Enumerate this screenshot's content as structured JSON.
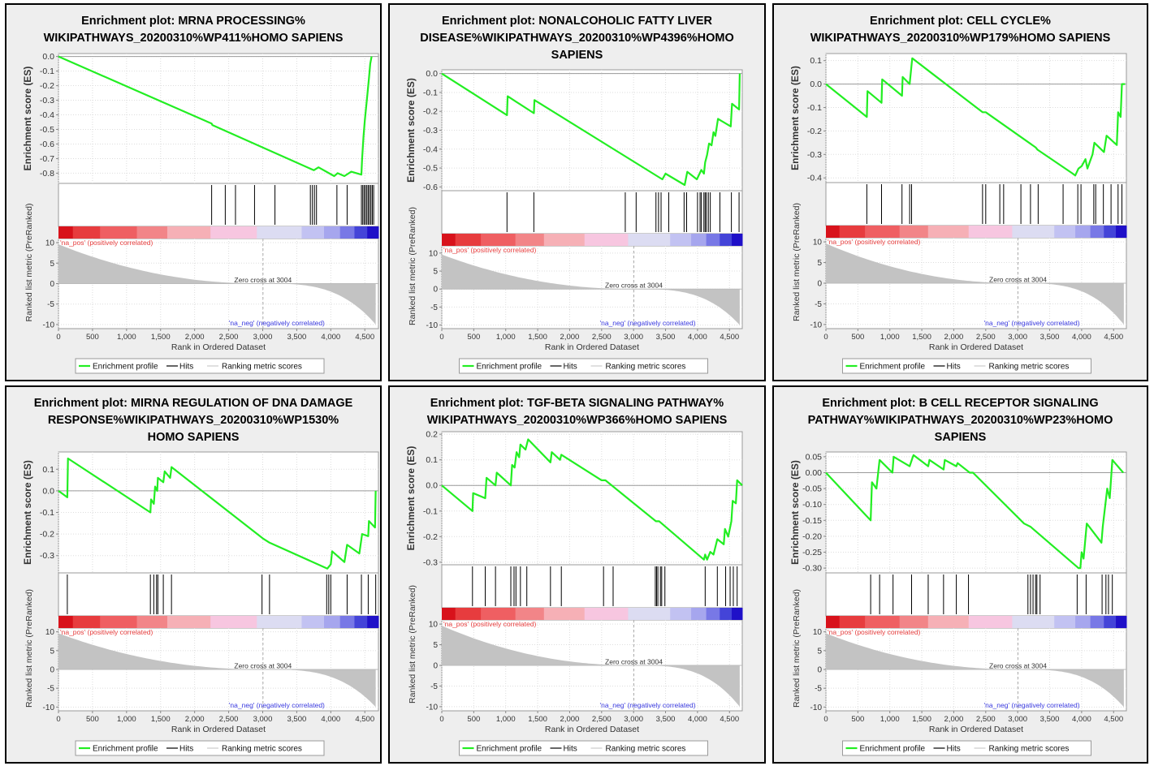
{
  "legend": {
    "profile": "Enrichment profile",
    "hits": "Hits",
    "scores": "Ranking metric scores"
  },
  "axis": {
    "xlabel": "Rank in Ordered Dataset",
    "es_label": "Enrichment score (ES)",
    "metric_label": "Ranked list metric (PreRanked)",
    "pos_label": "'na_pos' (positively correlated)",
    "neg_label": "'na_neg' (negatively correlated)",
    "zero_cross": "Zero cross at 3004"
  },
  "colors": {
    "profile": "#22ee22",
    "pos_text": "#e84040",
    "neg_text": "#3a3ae0",
    "metric_fill": "#c3c3c3",
    "colorbar": [
      "#d8121b",
      "#e73c3e",
      "#ef5f62",
      "#f28588",
      "#f6b0b6",
      "#f7c6e0",
      "#dcdcf2",
      "#c2c2f2",
      "#a6a6ee",
      "#7878e6",
      "#4444d8",
      "#1f10c8"
    ]
  },
  "chart_data": [
    {
      "type": "line",
      "title": "Enrichment plot: MRNA PROCESSING%\nWIKIPATHWAYS_20200310%WP411%HOMO SAPIENS",
      "xlim": [
        0,
        4700
      ],
      "x_ticks": [
        0,
        500,
        1000,
        1500,
        2000,
        2500,
        3000,
        3500,
        4000,
        4500
      ],
      "es_ylim": [
        -0.87,
        0.02
      ],
      "es_ticks": [
        0.0,
        -0.1,
        -0.2,
        -0.3,
        -0.4,
        -0.5,
        -0.6,
        -0.7,
        -0.8
      ],
      "es_tick_labels": [
        "0.0",
        "-0.1",
        "-0.2",
        "-0.3",
        "-0.4",
        "-0.5",
        "-0.6",
        "-0.7",
        "-0.8"
      ],
      "metric_ylim": [
        -11,
        11
      ],
      "metric_ticks": [
        10,
        5,
        0,
        -5,
        -10
      ],
      "zero_cross": 3004,
      "es_curve": [
        [
          0,
          0
        ],
        [
          2250,
          -0.46
        ],
        [
          2260,
          -0.47
        ],
        [
          3750,
          -0.78
        ],
        [
          3820,
          -0.76
        ],
        [
          4050,
          -0.82
        ],
        [
          4100,
          -0.8
        ],
        [
          4200,
          -0.82
        ],
        [
          4300,
          -0.79
        ],
        [
          4450,
          -0.81
        ],
        [
          4460,
          -0.7
        ],
        [
          4480,
          -0.55
        ],
        [
          4500,
          -0.44
        ],
        [
          4530,
          -0.3
        ],
        [
          4560,
          -0.15
        ],
        [
          4580,
          -0.05
        ],
        [
          4600,
          0.0
        ]
      ],
      "hits": [
        2250,
        2450,
        2600,
        2880,
        3180,
        3700,
        3730,
        3760,
        3790,
        4090,
        4240,
        4450,
        4470,
        4490,
        4510,
        4530,
        4550,
        4570,
        4590,
        4610,
        4630
      ]
    },
    {
      "type": "line",
      "title": "Enrichment plot: NONALCOHOLIC FATTY LIVER\nDISEASE%WIKIPATHWAYS_20200310%WP4396%HOMO\nSAPIENS",
      "xlim": [
        0,
        4700
      ],
      "x_ticks": [
        0,
        500,
        1000,
        1500,
        2000,
        2500,
        3000,
        3500,
        4000,
        4500
      ],
      "es_ylim": [
        -0.62,
        0.02
      ],
      "es_ticks": [
        0.0,
        -0.1,
        -0.2,
        -0.3,
        -0.4,
        -0.5,
        -0.6
      ],
      "es_tick_labels": [
        "0.0",
        "-0.1",
        "-0.2",
        "-0.3",
        "-0.4",
        "-0.5",
        "-0.6"
      ],
      "metric_ylim": [
        -11,
        12
      ],
      "metric_ticks": [
        10,
        5,
        0,
        -5,
        -10
      ],
      "zero_cross": 3004,
      "es_curve": [
        [
          0,
          0
        ],
        [
          1020,
          -0.22
        ],
        [
          1030,
          -0.12
        ],
        [
          1440,
          -0.21
        ],
        [
          1450,
          -0.14
        ],
        [
          3450,
          -0.56
        ],
        [
          3500,
          -0.53
        ],
        [
          3800,
          -0.59
        ],
        [
          3840,
          -0.52
        ],
        [
          3990,
          -0.56
        ],
        [
          4060,
          -0.51
        ],
        [
          4100,
          -0.53
        ],
        [
          4120,
          -0.47
        ],
        [
          4150,
          -0.43
        ],
        [
          4180,
          -0.37
        ],
        [
          4220,
          -0.38
        ],
        [
          4250,
          -0.31
        ],
        [
          4280,
          -0.33
        ],
        [
          4320,
          -0.24
        ],
        [
          4520,
          -0.28
        ],
        [
          4540,
          -0.16
        ],
        [
          4650,
          -0.19
        ],
        [
          4660,
          0.0
        ]
      ],
      "hits": [
        1020,
        1440,
        2870,
        3040,
        3350,
        3390,
        3430,
        3550,
        3790,
        3830,
        4000,
        4040,
        4060,
        4100,
        4120,
        4140,
        4170,
        4200,
        4350,
        4530,
        4650
      ]
    },
    {
      "type": "line",
      "title": "Enrichment plot: CELL CYCLE%\nWIKIPATHWAYS_20200310%WP179%HOMO SAPIENS",
      "xlim": [
        0,
        4700
      ],
      "x_ticks": [
        0,
        500,
        1000,
        1500,
        2000,
        2500,
        3000,
        3500,
        4000,
        4500
      ],
      "es_ylim": [
        -0.42,
        0.13
      ],
      "es_ticks": [
        0.1,
        0.0,
        -0.1,
        -0.2,
        -0.3,
        -0.4
      ],
      "es_tick_labels": [
        "0.1",
        "0.0",
        "-0.1",
        "-0.2",
        "-0.3",
        "-0.4"
      ],
      "metric_ylim": [
        -11,
        11
      ],
      "metric_ticks": [
        10,
        5,
        0,
        -5,
        -10
      ],
      "zero_cross": 3004,
      "es_curve": [
        [
          0,
          0
        ],
        [
          640,
          -0.14
        ],
        [
          650,
          -0.03
        ],
        [
          870,
          -0.08
        ],
        [
          880,
          0.02
        ],
        [
          1190,
          -0.05
        ],
        [
          1200,
          0.03
        ],
        [
          1310,
          0.0
        ],
        [
          1350,
          0.11
        ],
        [
          2450,
          -0.12
        ],
        [
          2500,
          -0.12
        ],
        [
          3280,
          -0.27
        ],
        [
          3310,
          -0.28
        ],
        [
          3850,
          -0.38
        ],
        [
          3900,
          -0.39
        ],
        [
          3950,
          -0.36
        ],
        [
          4000,
          -0.35
        ],
        [
          4060,
          -0.32
        ],
        [
          4090,
          -0.36
        ],
        [
          4170,
          -0.3
        ],
        [
          4200,
          -0.25
        ],
        [
          4350,
          -0.29
        ],
        [
          4390,
          -0.22
        ],
        [
          4550,
          -0.26
        ],
        [
          4570,
          -0.12
        ],
        [
          4610,
          -0.14
        ],
        [
          4630,
          0.0
        ],
        [
          4680,
          0.0
        ]
      ],
      "hits": [
        640,
        870,
        1190,
        1310,
        1340,
        2450,
        2500,
        2720,
        2780,
        3050,
        3200,
        3320,
        3710,
        3940,
        3990,
        4190,
        4220,
        4340,
        4460,
        4570,
        4630
      ]
    },
    {
      "type": "line",
      "title": "Enrichment plot: MIRNA REGULATION OF DNA DAMAGE\nRESPONSE%WIKIPATHWAYS_20200310%WP1530%\nHOMO SAPIENS",
      "xlim": [
        0,
        4700
      ],
      "x_ticks": [
        0,
        500,
        1000,
        1500,
        2000,
        2500,
        3000,
        3500,
        4000,
        4500
      ],
      "es_ylim": [
        -0.38,
        0.18
      ],
      "es_ticks": [
        0.1,
        0.0,
        -0.1,
        -0.2,
        -0.3
      ],
      "es_tick_labels": [
        "0.1",
        "0.0",
        "-0.1",
        "-0.2",
        "-0.3"
      ],
      "metric_ylim": [
        -11,
        11
      ],
      "metric_ticks": [
        10,
        5,
        0,
        -5,
        -10
      ],
      "zero_cross": 3004,
      "es_curve": [
        [
          0,
          0
        ],
        [
          130,
          -0.03
        ],
        [
          140,
          0.15
        ],
        [
          1350,
          -0.1
        ],
        [
          1360,
          -0.04
        ],
        [
          1400,
          -0.06
        ],
        [
          1420,
          0.02
        ],
        [
          1450,
          0.0
        ],
        [
          1460,
          0.06
        ],
        [
          1540,
          0.04
        ],
        [
          1560,
          0.09
        ],
        [
          1640,
          0.06
        ],
        [
          1660,
          0.11
        ],
        [
          3000,
          -0.22
        ],
        [
          3100,
          -0.24
        ],
        [
          3950,
          -0.36
        ],
        [
          4000,
          -0.34
        ],
        [
          4020,
          -0.28
        ],
        [
          4200,
          -0.33
        ],
        [
          4240,
          -0.25
        ],
        [
          4420,
          -0.29
        ],
        [
          4460,
          -0.2
        ],
        [
          4550,
          -0.21
        ],
        [
          4560,
          -0.14
        ],
        [
          4650,
          -0.17
        ],
        [
          4660,
          0.0
        ]
      ],
      "hits": [
        130,
        1350,
        1400,
        1440,
        1460,
        1540,
        1660,
        2990,
        3100,
        3940,
        3970,
        4000,
        4240,
        4450,
        4550,
        4660
      ]
    },
    {
      "type": "line",
      "title": "Enrichment plot: TGF-BETA SIGNALING PATHWAY%\nWIKIPATHWAYS_20200310%WP366%HOMO SAPIENS",
      "xlim": [
        0,
        4700
      ],
      "x_ticks": [
        0,
        500,
        1000,
        1500,
        2000,
        2500,
        3000,
        3500,
        4000,
        4500
      ],
      "es_ylim": [
        -0.31,
        0.21
      ],
      "es_ticks": [
        0.2,
        0.1,
        0.0,
        -0.1,
        -0.2,
        -0.3
      ],
      "es_tick_labels": [
        "0.2",
        "0.1",
        "0.0",
        "-0.1",
        "-0.2",
        "-0.3"
      ],
      "metric_ylim": [
        -11,
        11
      ],
      "metric_ticks": [
        10,
        5,
        0,
        -5,
        -10
      ],
      "zero_cross": 3004,
      "es_curve": [
        [
          0,
          0
        ],
        [
          480,
          -0.1
        ],
        [
          490,
          -0.03
        ],
        [
          680,
          -0.05
        ],
        [
          700,
          0.03
        ],
        [
          840,
          0.0
        ],
        [
          860,
          0.05
        ],
        [
          1080,
          0.0
        ],
        [
          1100,
          0.08
        ],
        [
          1140,
          0.07
        ],
        [
          1170,
          0.13
        ],
        [
          1210,
          0.11
        ],
        [
          1230,
          0.16
        ],
        [
          1310,
          0.14
        ],
        [
          1350,
          0.18
        ],
        [
          1700,
          0.09
        ],
        [
          1720,
          0.13
        ],
        [
          1850,
          0.1
        ],
        [
          1870,
          0.12
        ],
        [
          2500,
          0.02
        ],
        [
          2560,
          0.02
        ],
        [
          3350,
          -0.14
        ],
        [
          3400,
          -0.14
        ],
        [
          4100,
          -0.29
        ],
        [
          4120,
          -0.27
        ],
        [
          4150,
          -0.29
        ],
        [
          4200,
          -0.26
        ],
        [
          4250,
          -0.27
        ],
        [
          4310,
          -0.21
        ],
        [
          4410,
          -0.23
        ],
        [
          4430,
          -0.17
        ],
        [
          4480,
          -0.2
        ],
        [
          4530,
          -0.14
        ],
        [
          4550,
          -0.06
        ],
        [
          4600,
          -0.07
        ],
        [
          4620,
          0.02
        ],
        [
          4700,
          0.0
        ]
      ],
      "hits": [
        480,
        680,
        840,
        1080,
        1130,
        1160,
        1230,
        1330,
        1700,
        1870,
        2530,
        2680,
        3340,
        3360,
        3380,
        3420,
        3440,
        3490,
        4120,
        4310,
        4440,
        4510,
        4560,
        4620
      ]
    },
    {
      "type": "line",
      "title": "Enrichment plot: B CELL RECEPTOR SIGNALING\nPATHWAY%WIKIPATHWAYS_20200310%WP23%HOMO\nSAPIENS",
      "xlim": [
        0,
        4700
      ],
      "x_ticks": [
        0,
        500,
        1000,
        1500,
        2000,
        2500,
        3000,
        3500,
        4000,
        4500
      ],
      "es_ylim": [
        -0.315,
        0.065
      ],
      "es_ticks": [
        0.05,
        0.0,
        -0.05,
        -0.1,
        -0.15,
        -0.2,
        -0.25,
        -0.3
      ],
      "es_tick_labels": [
        "0.05",
        "0.00",
        "-0.05",
        "-0.10",
        "-0.15",
        "-0.20",
        "-0.25",
        "-0.30"
      ],
      "metric_ylim": [
        -11,
        11
      ],
      "metric_ticks": [
        10,
        5,
        0,
        -5,
        -10
      ],
      "zero_cross": 3004,
      "es_curve": [
        [
          0,
          0
        ],
        [
          700,
          -0.15
        ],
        [
          720,
          -0.03
        ],
        [
          790,
          -0.05
        ],
        [
          840,
          0.04
        ],
        [
          1040,
          0.0
        ],
        [
          1060,
          0.05
        ],
        [
          1310,
          0.02
        ],
        [
          1360,
          0.05
        ],
        [
          1370,
          0.055
        ],
        [
          1600,
          0.02
        ],
        [
          1620,
          0.04
        ],
        [
          1840,
          0.01
        ],
        [
          1860,
          0.04
        ],
        [
          2040,
          0.02
        ],
        [
          2060,
          0.03
        ],
        [
          2250,
          0.0
        ],
        [
          2300,
          0.0
        ],
        [
          3100,
          -0.16
        ],
        [
          3200,
          -0.17
        ],
        [
          3950,
          -0.3
        ],
        [
          3980,
          -0.3
        ],
        [
          4000,
          -0.25
        ],
        [
          4030,
          -0.27
        ],
        [
          4080,
          -0.16
        ],
        [
          4310,
          -0.22
        ],
        [
          4330,
          -0.17
        ],
        [
          4400,
          -0.05
        ],
        [
          4440,
          -0.08
        ],
        [
          4480,
          0.04
        ],
        [
          4650,
          0.0
        ]
      ],
      "hits": [
        700,
        840,
        1050,
        1340,
        1600,
        1840,
        2040,
        2230,
        3160,
        3200,
        3240,
        3280,
        3300,
        3350,
        3930,
        4070,
        4320,
        4380,
        4420,
        4480
      ]
    }
  ]
}
